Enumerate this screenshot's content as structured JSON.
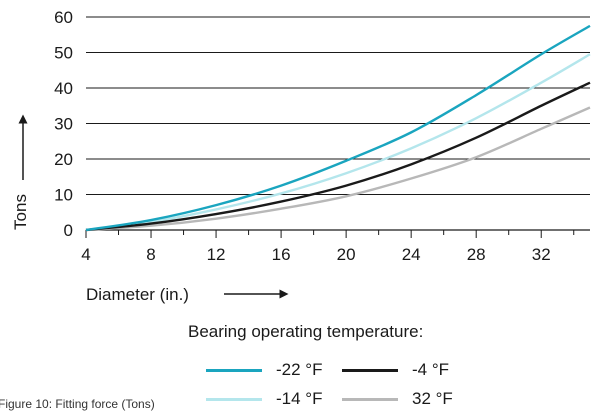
{
  "chart_data": {
    "type": "line",
    "xlabel": "Diameter (in.)",
    "ylabel": "Tons",
    "xlim": [
      4,
      35
    ],
    "ylim": [
      0,
      60
    ],
    "xticks": [
      4,
      8,
      12,
      16,
      20,
      24,
      28,
      32
    ],
    "yticks": [
      0,
      10,
      20,
      30,
      40,
      50,
      60
    ],
    "grid": "horizontal",
    "legend_title": "Bearing operating temperature:",
    "legend_position": "bottom",
    "series": [
      {
        "name": "-22 °F",
        "color": "#1aa5bf",
        "x": [
          4,
          8,
          12,
          16,
          20,
          24,
          28,
          32,
          35
        ],
        "y": [
          0,
          2.8,
          7,
          12.5,
          19.5,
          27.5,
          38,
          49.5,
          57.5
        ]
      },
      {
        "name": "-4 °F",
        "color": "#1a1a1a",
        "x": [
          4,
          8,
          12,
          16,
          20,
          24,
          28,
          32,
          35
        ],
        "y": [
          0,
          1.8,
          4.5,
          8,
          12.5,
          18.5,
          26,
          35,
          41.5
        ]
      },
      {
        "name": "-14 °F",
        "color": "#b4e6ec",
        "x": [
          4,
          8,
          12,
          16,
          20,
          24,
          28,
          32,
          35
        ],
        "y": [
          0,
          2.3,
          5.8,
          10.3,
          16,
          23,
          31.5,
          41.5,
          49.5
        ]
      },
      {
        "name": "32 °F",
        "color": "#b8b8b8",
        "x": [
          4,
          8,
          12,
          16,
          20,
          24,
          28,
          32,
          35
        ],
        "y": [
          0,
          1.2,
          3.2,
          6,
          9.5,
          14.5,
          20.5,
          28.5,
          34.5
        ]
      }
    ]
  },
  "caption": "Figure 10: Fitting force (Tons)"
}
